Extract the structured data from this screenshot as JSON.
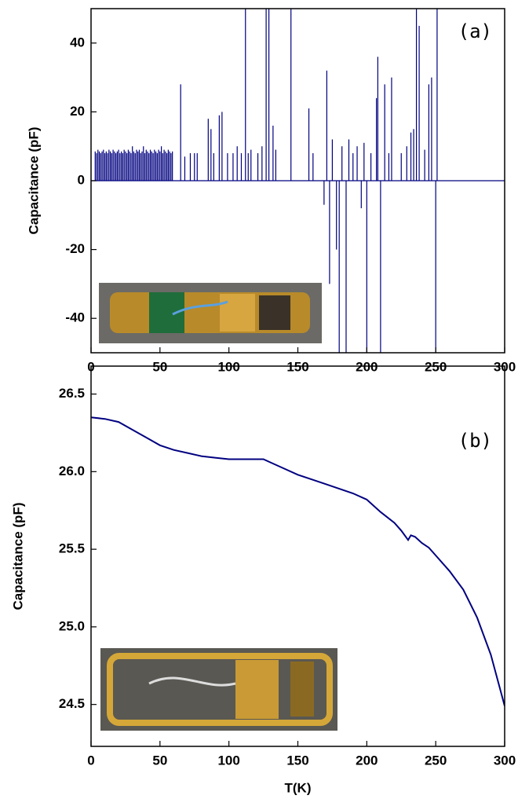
{
  "chart_data": [
    {
      "type": "bar",
      "annotation": "(a)",
      "y_label": "Capacitance (pF)",
      "color": "#000080",
      "x": [
        3,
        4,
        5,
        6,
        7,
        8,
        9,
        10,
        11,
        12,
        13,
        14,
        15,
        16,
        17,
        18,
        19,
        20,
        21,
        22,
        23,
        24,
        25,
        26,
        27,
        28,
        29,
        30,
        31,
        32,
        33,
        34,
        35,
        36,
        37,
        38,
        39,
        40,
        41,
        42,
        43,
        44,
        45,
        46,
        47,
        48,
        49,
        50,
        51,
        52,
        53,
        54,
        55,
        56,
        57,
        58,
        59,
        65,
        68,
        72,
        75,
        77,
        85,
        87,
        89,
        93,
        95,
        99,
        103,
        106,
        109,
        112,
        114,
        116,
        121,
        124,
        127,
        129,
        132,
        134,
        145,
        158,
        161,
        169,
        171,
        173,
        175,
        178,
        180,
        182,
        185,
        187,
        190,
        193,
        196,
        198,
        200,
        203,
        207,
        208,
        210,
        213,
        216,
        218,
        225,
        229,
        232,
        234,
        236,
        238,
        242,
        245,
        247,
        250,
        251
      ],
      "values": [
        8.5,
        8,
        9,
        8.5,
        8,
        8.5,
        9,
        8,
        8.5,
        8,
        9,
        8.5,
        8,
        9,
        8.5,
        8,
        8.5,
        9,
        8,
        8.5,
        8,
        9,
        8.5,
        8,
        9,
        8.5,
        8,
        10,
        8.5,
        8,
        9,
        8.5,
        9,
        8,
        8.5,
        10,
        8,
        9,
        8.5,
        8,
        9,
        8.5,
        8,
        9,
        8.5,
        8,
        9,
        8.5,
        10,
        8,
        9,
        8.5,
        8,
        9,
        8.5,
        8,
        8.5,
        28,
        7,
        8,
        8,
        8,
        18,
        15,
        8,
        19,
        20,
        8,
        8,
        10,
        8,
        50,
        8,
        9,
        8,
        10,
        50,
        50,
        16,
        9,
        50,
        21,
        8,
        -7,
        32,
        -30,
        12,
        -20,
        -50,
        10,
        -50,
        12,
        8,
        10,
        -8,
        11,
        -50,
        8,
        24,
        36,
        -50,
        28,
        8,
        30,
        8,
        10,
        14,
        15,
        50,
        45,
        9,
        28,
        30,
        -50,
        50
      ],
      "xlim": [
        0,
        300
      ],
      "xticks": [
        0,
        50,
        100,
        150,
        200,
        250,
        300
      ],
      "ylim": [
        -50,
        50
      ],
      "yticks": [
        -40,
        -20,
        0,
        20,
        40
      ]
    },
    {
      "type": "line",
      "annotation": "(b)",
      "y_label": "Capacitance (pF)",
      "x_label": "T(K)",
      "color": "#000080",
      "x": [
        0,
        10,
        20,
        30,
        40,
        50,
        60,
        70,
        80,
        90,
        100,
        110,
        120,
        125,
        130,
        140,
        150,
        160,
        170,
        180,
        190,
        200,
        210,
        220,
        225,
        230,
        232,
        235,
        240,
        245,
        250,
        260,
        270,
        280,
        290,
        300
      ],
      "values": [
        26.35,
        26.34,
        26.32,
        26.27,
        26.22,
        26.17,
        26.14,
        26.12,
        26.1,
        26.09,
        26.08,
        26.08,
        26.08,
        26.08,
        26.06,
        26.02,
        25.98,
        25.95,
        25.92,
        25.89,
        25.86,
        25.82,
        25.74,
        25.67,
        25.62,
        25.56,
        25.59,
        25.58,
        25.54,
        25.51,
        25.46,
        25.36,
        25.24,
        25.06,
        24.82,
        24.49
      ],
      "xlim": [
        0,
        300
      ],
      "xticks": [
        0,
        50,
        100,
        150,
        200,
        250,
        300
      ],
      "ylim": [
        24.23,
        26.68
      ],
      "yticks": [
        24.5,
        {
          "value": 25,
          "label": "25.0"
        },
        25.5,
        {
          "value": 26,
          "label": "26.0"
        },
        26.5
      ]
    }
  ]
}
